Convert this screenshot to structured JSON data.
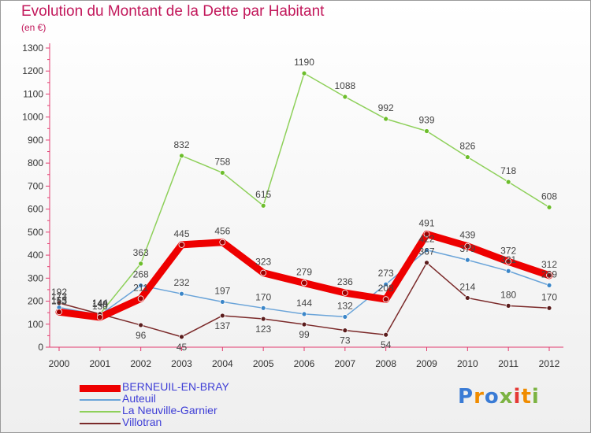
{
  "header": {
    "title": "Evolution du Montant de la Dette par Habitant",
    "subtitle": "(en €)"
  },
  "logo": {
    "text": "Proxiti",
    "colors": [
      "#3a7bd5",
      "#f08c00",
      "#3a7bd5",
      "#7cb342",
      "#e53935",
      "#f08c00",
      "#7cb342"
    ]
  },
  "chart_data": {
    "type": "line",
    "x": [
      "2000",
      "2001",
      "2002",
      "2003",
      "2004",
      "2005",
      "2006",
      "2007",
      "2008",
      "2009",
      "2010",
      "2011",
      "2012"
    ],
    "ylim": [
      0,
      1300
    ],
    "yticks": [
      0,
      100,
      200,
      300,
      400,
      500,
      600,
      700,
      800,
      900,
      1000,
      1100,
      1200,
      1300
    ],
    "grid": false,
    "legend_position": "bottom-left",
    "series": [
      {
        "name": "BERNEUIL-EN-BRAY",
        "color": "#ee0000",
        "values": [
          153,
          130,
          211,
          445,
          456,
          323,
          279,
          236,
          208,
          491,
          439,
          372,
          312
        ],
        "labels": [
          "153",
          "130",
          "211",
          "445",
          "456",
          "323",
          "279",
          "236",
          "208",
          "491",
          "439",
          "372",
          "312"
        ]
      },
      {
        "name": "Auteuil",
        "color": "#6aa4d9",
        "values": [
          173,
          140,
          268,
          232,
          197,
          170,
          144,
          132,
          273,
          422,
          379,
          331,
          269
        ],
        "labels": [
          "173",
          "140",
          "268",
          "232",
          "197",
          "170",
          "144",
          "132",
          "273",
          "422",
          "379",
          "331",
          "269"
        ]
      },
      {
        "name": "La Neuville-Garnier",
        "color": "#8ed05a",
        "values": [
          155,
          144,
          363,
          832,
          758,
          615,
          1190,
          1088,
          992,
          939,
          826,
          718,
          608
        ],
        "labels": [
          "155",
          "144",
          "363",
          "832",
          "758",
          "615",
          "1190",
          "1088",
          "992",
          "939",
          "826",
          "718",
          "608"
        ]
      },
      {
        "name": "Villotran",
        "color": "#7b2a2a",
        "values": [
          192,
          144,
          96,
          45,
          137,
          123,
          99,
          73,
          54,
          367,
          214,
          180,
          170
        ],
        "labels": [
          "192",
          "144",
          "96",
          "45",
          "137",
          "123",
          "99",
          "73",
          "54",
          "367",
          "214",
          "180",
          "170"
        ]
      }
    ]
  }
}
